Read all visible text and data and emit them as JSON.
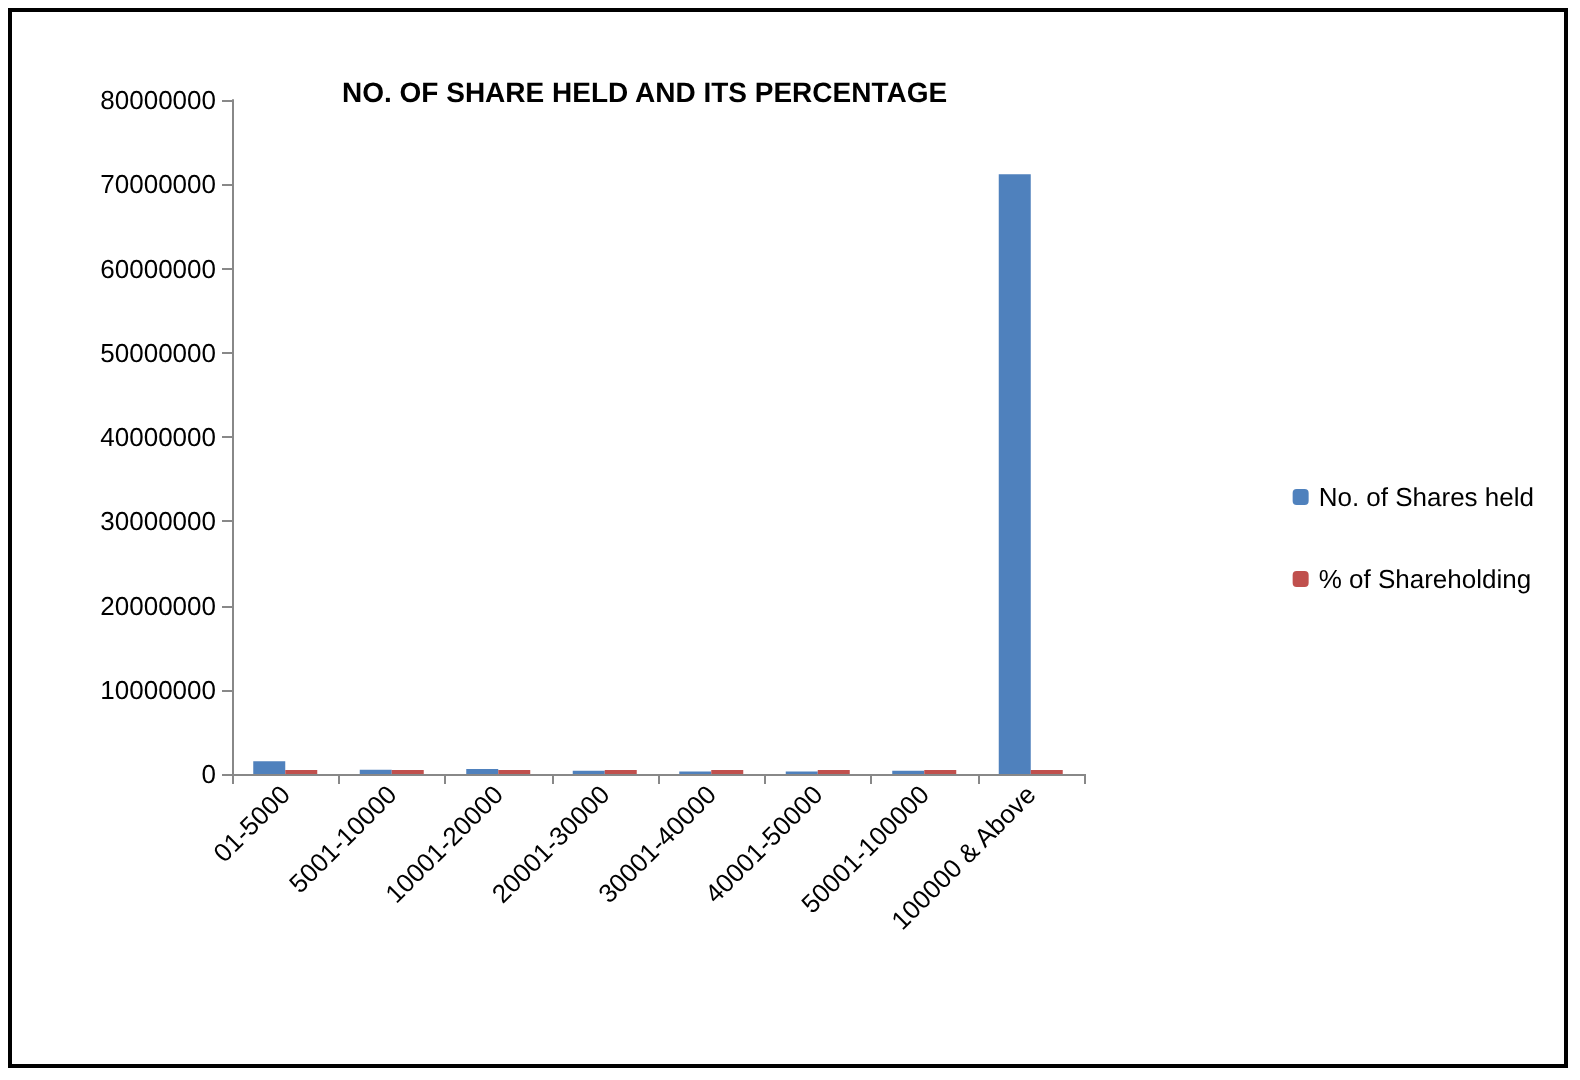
{
  "chart_data": {
    "type": "bar",
    "title": "NO. OF SHARE HELD AND ITS PERCENTAGE",
    "categories": [
      "01-5000",
      "5001-10000",
      "10001-20000",
      "20001-30000",
      "30001-40000",
      "40001-50000",
      "50001-100000",
      "100000 & Above"
    ],
    "series": [
      {
        "name": "No. of Shares held",
        "color": "#4f81bd",
        "values": [
          1500000,
          500000,
          600000,
          400000,
          300000,
          300000,
          400000,
          71200000
        ]
      },
      {
        "name": "% of Shareholding",
        "color": "#c0504d",
        "values": [
          0,
          0,
          0,
          0,
          0,
          0,
          0,
          0
        ]
      }
    ],
    "ylim": [
      0,
      80000000
    ],
    "yticks": [
      0,
      10000000,
      20000000,
      30000000,
      40000000,
      50000000,
      60000000,
      70000000,
      80000000
    ],
    "grid": false,
    "legend": "right"
  }
}
